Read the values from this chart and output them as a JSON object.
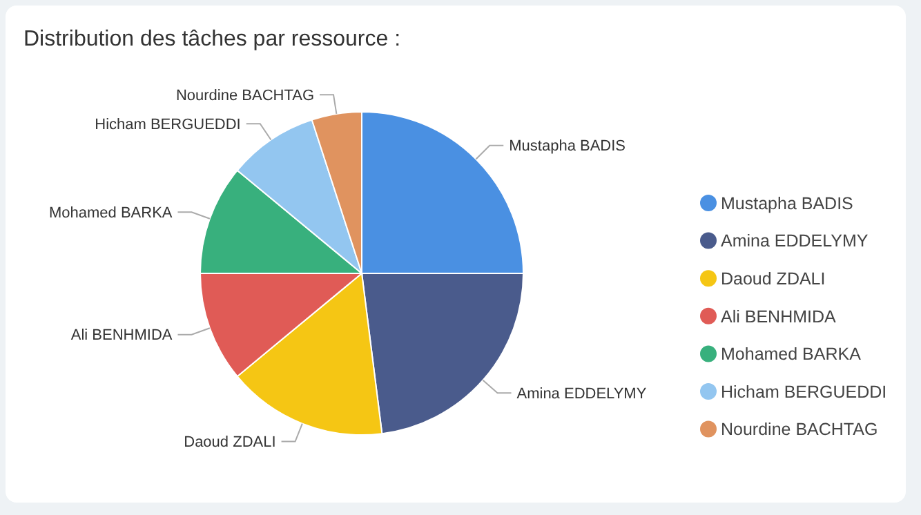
{
  "chart_data": {
    "type": "pie",
    "title": "Distribution des tâches par ressource :",
    "categories": [
      "Mustapha BADIS",
      "Amina EDDELYMY",
      "Daoud ZDALI",
      "Ali BENHMIDA",
      "Mohamed BARKA",
      "Hicham BERGUEDDI",
      "Nourdine BACHTAG"
    ],
    "values": [
      25,
      23,
      16,
      11,
      11,
      9,
      5
    ],
    "colors": [
      "#4a90e2",
      "#4a5b8c",
      "#f5c614",
      "#e05b56",
      "#38b07d",
      "#93c6f0",
      "#e0935f"
    ],
    "legend": "right"
  }
}
